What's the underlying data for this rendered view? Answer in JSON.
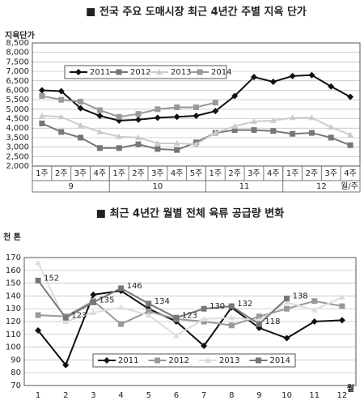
{
  "chart_data": [
    {
      "type": "line",
      "title": "■ 전국 주요 도매시장 최근 4년간 주별 지육 단가",
      "y_label": "지육단가",
      "x_label": "월/주",
      "categories": [
        "1주",
        "2주",
        "3주",
        "4주",
        "1주",
        "2주",
        "3주",
        "4주",
        "5주",
        "1주",
        "2주",
        "3주",
        "4주",
        "1주",
        "2주",
        "3주",
        "4주"
      ],
      "categories_outer": [
        "9",
        null,
        null,
        null,
        "10",
        null,
        null,
        null,
        null,
        "11",
        null,
        null,
        null,
        "12",
        null,
        null,
        null
      ],
      "ylim": [
        2000,
        8500
      ],
      "yticks": [
        {
          "value": 2000,
          "label": "2,000"
        },
        {
          "value": 2500,
          "label": "2,500"
        },
        {
          "value": 3000,
          "label": "3,000"
        },
        {
          "value": 3500,
          "label": "3,500"
        },
        {
          "value": 4000,
          "label": "4,000"
        },
        {
          "value": 4500,
          "label": "4,500"
        },
        {
          "value": 5000,
          "label": "5,000"
        },
        {
          "value": 5500,
          "label": "5,500"
        },
        {
          "value": 6000,
          "label": "6,000"
        },
        {
          "value": 6500,
          "label": "6,500"
        },
        {
          "value": 7000,
          "label": "7,000"
        },
        {
          "value": 7500,
          "label": "7,500"
        },
        {
          "value": 8000,
          "label": "8,000"
        },
        {
          "value": 8500,
          "label": "8,500"
        }
      ],
      "grid": true,
      "series": [
        {
          "name": "2011",
          "color": "#111111",
          "marker": "diamond",
          "values": [
            6000,
            5950,
            5050,
            4650,
            4400,
            4450,
            4550,
            4600,
            4650,
            4900,
            5700,
            6700,
            6450,
            6750,
            6800,
            6200,
            5650
          ]
        },
        {
          "name": "2012",
          "color": "#777777",
          "marker": "square",
          "values": [
            4250,
            3800,
            3500,
            2950,
            2950,
            3150,
            2900,
            2850,
            3250,
            3750,
            3900,
            3900,
            3850,
            3700,
            3750,
            3500,
            3100
          ]
        },
        {
          "name": "2013",
          "color": "#cccccc",
          "marker": "triangle",
          "values": [
            4650,
            4600,
            4150,
            3800,
            3550,
            3500,
            3200,
            3200,
            3150,
            3750,
            4100,
            4350,
            4400,
            4550,
            4550,
            4050,
            3650
          ]
        },
        {
          "name": "2014",
          "color": "#999999",
          "marker": "square",
          "values": [
            5700,
            5500,
            5400,
            4950,
            4600,
            4750,
            5000,
            5100,
            5100,
            5350,
            null,
            null,
            null,
            null,
            null,
            null,
            null
          ]
        }
      ]
    },
    {
      "type": "line",
      "title": "■ 최근 4년간 월별 전체 육류 공급량 변화",
      "y_label": "천 톤",
      "x_label": "월",
      "categories": [
        "1",
        "2",
        "3",
        "4",
        "5",
        "6",
        "7",
        "8",
        "9",
        "10",
        "11",
        "12"
      ],
      "ylim": [
        70,
        170
      ],
      "yticks": [
        70,
        80,
        90,
        100,
        110,
        120,
        130,
        140,
        150,
        160,
        170
      ],
      "grid": true,
      "series": [
        {
          "name": "2011",
          "color": "#111111",
          "marker": "diamond",
          "values": [
            113,
            86,
            141,
            144,
            130,
            120,
            101,
            131,
            115,
            107,
            120,
            121
          ]
        },
        {
          "name": "2012",
          "color": "#999999",
          "marker": "square",
          "values": [
            125,
            124,
            136,
            118,
            128,
            122,
            120,
            117,
            124,
            130,
            136,
            132
          ]
        },
        {
          "name": "2013",
          "color": "#dddddd",
          "marker": "triangle",
          "values": [
            166,
            120,
            127,
            131,
            125,
            109,
            122,
            123,
            121,
            135,
            129,
            139
          ]
        },
        {
          "name": "2014",
          "color": "#777777",
          "marker": "square",
          "show_values": true,
          "values": [
            152,
            123,
            135,
            146,
            134,
            123,
            130,
            132,
            118,
            138,
            null,
            null
          ]
        }
      ]
    }
  ]
}
